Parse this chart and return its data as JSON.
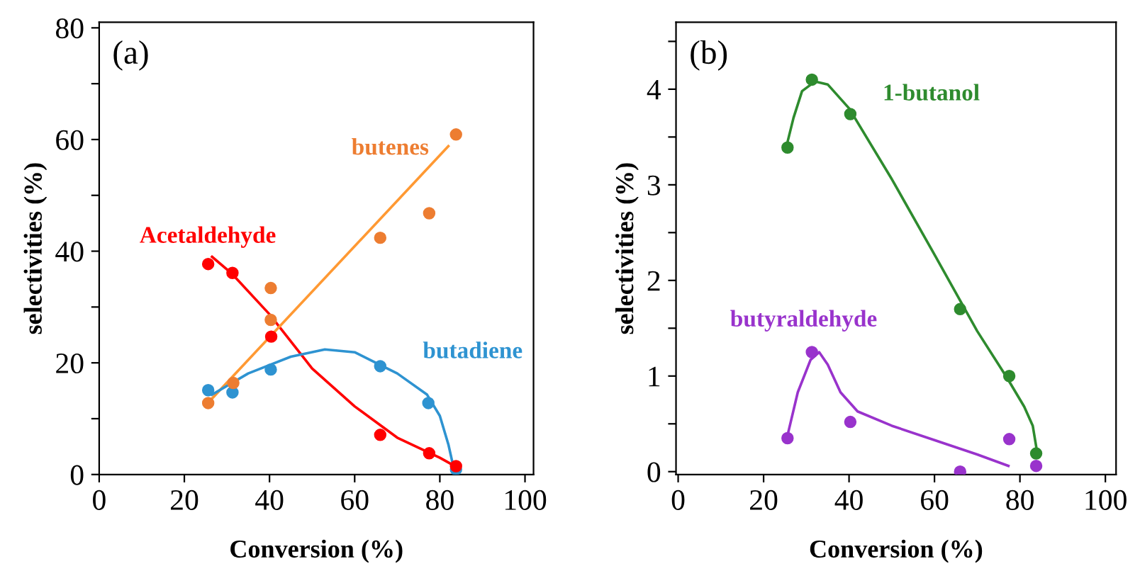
{
  "chart_data": [
    {
      "type": "scatter",
      "xlabel": "Conversion (%)",
      "ylabel": "selectivities (%)",
      "annotations": [
        "(a)"
      ],
      "xlim": [
        0,
        102
      ],
      "xticks": [
        0,
        20,
        40,
        60,
        80,
        100
      ],
      "ylim": [
        0,
        81
      ],
      "yticks": [
        0,
        {
          "value": 10,
          "label": null
        },
        20,
        {
          "value": 30,
          "label": null
        },
        40,
        {
          "value": 50,
          "label": null
        },
        60,
        {
          "value": 70,
          "label": null
        },
        80
      ],
      "grid": false,
      "legend": false,
      "series": [
        {
          "name": "Acetaldehyde",
          "marker": "circle",
          "color": "#ff0000",
          "x": [
            25.6,
            31.3,
            40.4,
            66.0,
            77.5,
            83.8
          ],
          "values": [
            37.7,
            36.1,
            24.7,
            7.1,
            3.8,
            1.5
          ]
        },
        {
          "name": "butenes",
          "marker": "circle",
          "color": "#ed7d31",
          "x": [
            25.6,
            31.5,
            40.3,
            40.3,
            66.0,
            77.5,
            83.8
          ],
          "values": [
            12.8,
            16.4,
            27.7,
            33.4,
            42.4,
            46.8,
            60.9
          ]
        },
        {
          "name": "butadiene",
          "marker": "circle",
          "color": "#2e93d1",
          "x": [
            25.6,
            31.3,
            40.3,
            66.0,
            77.3,
            83.8
          ],
          "values": [
            15.1,
            14.7,
            18.8,
            19.4,
            12.8,
            0.9
          ]
        },
        {
          "type": "line",
          "color": "#ff0000",
          "x": [
            26.5,
            31,
            40,
            50,
            60,
            70,
            80,
            84
          ],
          "values": [
            39.0,
            36.1,
            28.7,
            19.0,
            12.2,
            6.6,
            3.0,
            1.3
          ]
        },
        {
          "type": "line",
          "color": "#ff9933",
          "x": [
            26.5,
            82
          ],
          "values": [
            13.6,
            58.8
          ]
        },
        {
          "type": "line",
          "color": "#2e93d1",
          "x": [
            26.5,
            35,
            45,
            53,
            60,
            70,
            77,
            80,
            82,
            83.5
          ],
          "values": [
            14.3,
            18.1,
            21.1,
            22.4,
            21.9,
            18.1,
            14.3,
            10.5,
            5.4,
            0.3
          ]
        }
      ]
    },
    {
      "type": "scatter",
      "xlabel": "Conversion (%)",
      "ylabel": "selectivities (%)",
      "annotations": [
        "(b)"
      ],
      "xlim": [
        -0.5,
        102.5
      ],
      "xticks": [
        0,
        20,
        40,
        60,
        80,
        100
      ],
      "ylim": [
        -0.03,
        4.7
      ],
      "yticks": [
        0,
        {
          "value": 0.5,
          "label": null
        },
        1,
        {
          "value": 1.5,
          "label": null
        },
        2,
        {
          "value": 2.5,
          "label": null
        },
        3,
        {
          "value": 3.5,
          "label": null
        },
        4,
        {
          "value": 4.5,
          "label": null
        }
      ],
      "grid": false,
      "legend": false,
      "series": [
        {
          "name": "1-butanol",
          "marker": "circle",
          "color": "#2e8b2e",
          "x": [
            25.6,
            31.3,
            40.3,
            66.0,
            77.5,
            83.8
          ],
          "values": [
            3.39,
            4.1,
            3.74,
            1.7,
            1.0,
            0.19
          ]
        },
        {
          "name": "butyraldehyde",
          "marker": "circle",
          "color": "#9933cc",
          "x": [
            25.6,
            31.3,
            40.3,
            66.0,
            77.5,
            83.8
          ],
          "values": [
            0.35,
            1.25,
            0.52,
            0.0,
            0.34,
            0.06
          ]
        },
        {
          "type": "line",
          "color": "#2e8b2e",
          "x": [
            25.5,
            27,
            29,
            32,
            35,
            40,
            50,
            60,
            70,
            77,
            81,
            83,
            84
          ],
          "values": [
            3.43,
            3.7,
            3.98,
            4.08,
            4.05,
            3.8,
            3.06,
            2.27,
            1.47,
            0.98,
            0.68,
            0.48,
            0.21
          ]
        },
        {
          "type": "line",
          "color": "#9933cc",
          "x": [
            25.5,
            28,
            31,
            33,
            35,
            38,
            42,
            50,
            60,
            70,
            77.3
          ],
          "values": [
            0.36,
            0.83,
            1.17,
            1.25,
            1.12,
            0.83,
            0.63,
            0.48,
            0.33,
            0.18,
            0.06
          ]
        }
      ]
    }
  ]
}
